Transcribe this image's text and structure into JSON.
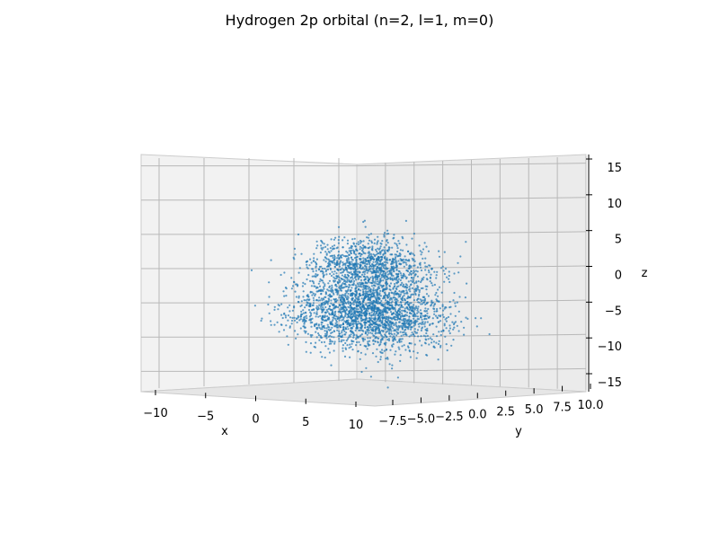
{
  "chart_data": {
    "type": "scatter",
    "projection": "3d",
    "title": "Hydrogen 2p orbital (n=2, l=1, m=0)",
    "xlabel": "x",
    "ylabel": "y",
    "zlabel": "z",
    "x_ticks": [
      "−10",
      "−5",
      "0",
      "5",
      "10"
    ],
    "y_ticks": [
      "−7.5",
      "−5.0",
      "−2.5",
      "0.0",
      "2.5",
      "5.0",
      "7.5",
      "10.0"
    ],
    "z_ticks": [
      "15",
      "10",
      "5",
      "0",
      "−5",
      "−10",
      "−15"
    ],
    "xlim": [
      -12,
      12
    ],
    "ylim": [
      -10,
      10
    ],
    "zlim": [
      -16,
      16
    ],
    "grid": true,
    "marker_color": "#1f77b4",
    "series": [
      {
        "lobes": [
          {
            "center": [
              0,
              0,
              3
            ],
            "spread_xy": 3.5,
            "spread_z": 2.2,
            "points": 1100
          },
          {
            "center": [
              0,
              0,
              -4
            ],
            "spread_xy": 4.5,
            "spread_z": 2.6,
            "points": 2200
          }
        ]
      }
    ]
  }
}
